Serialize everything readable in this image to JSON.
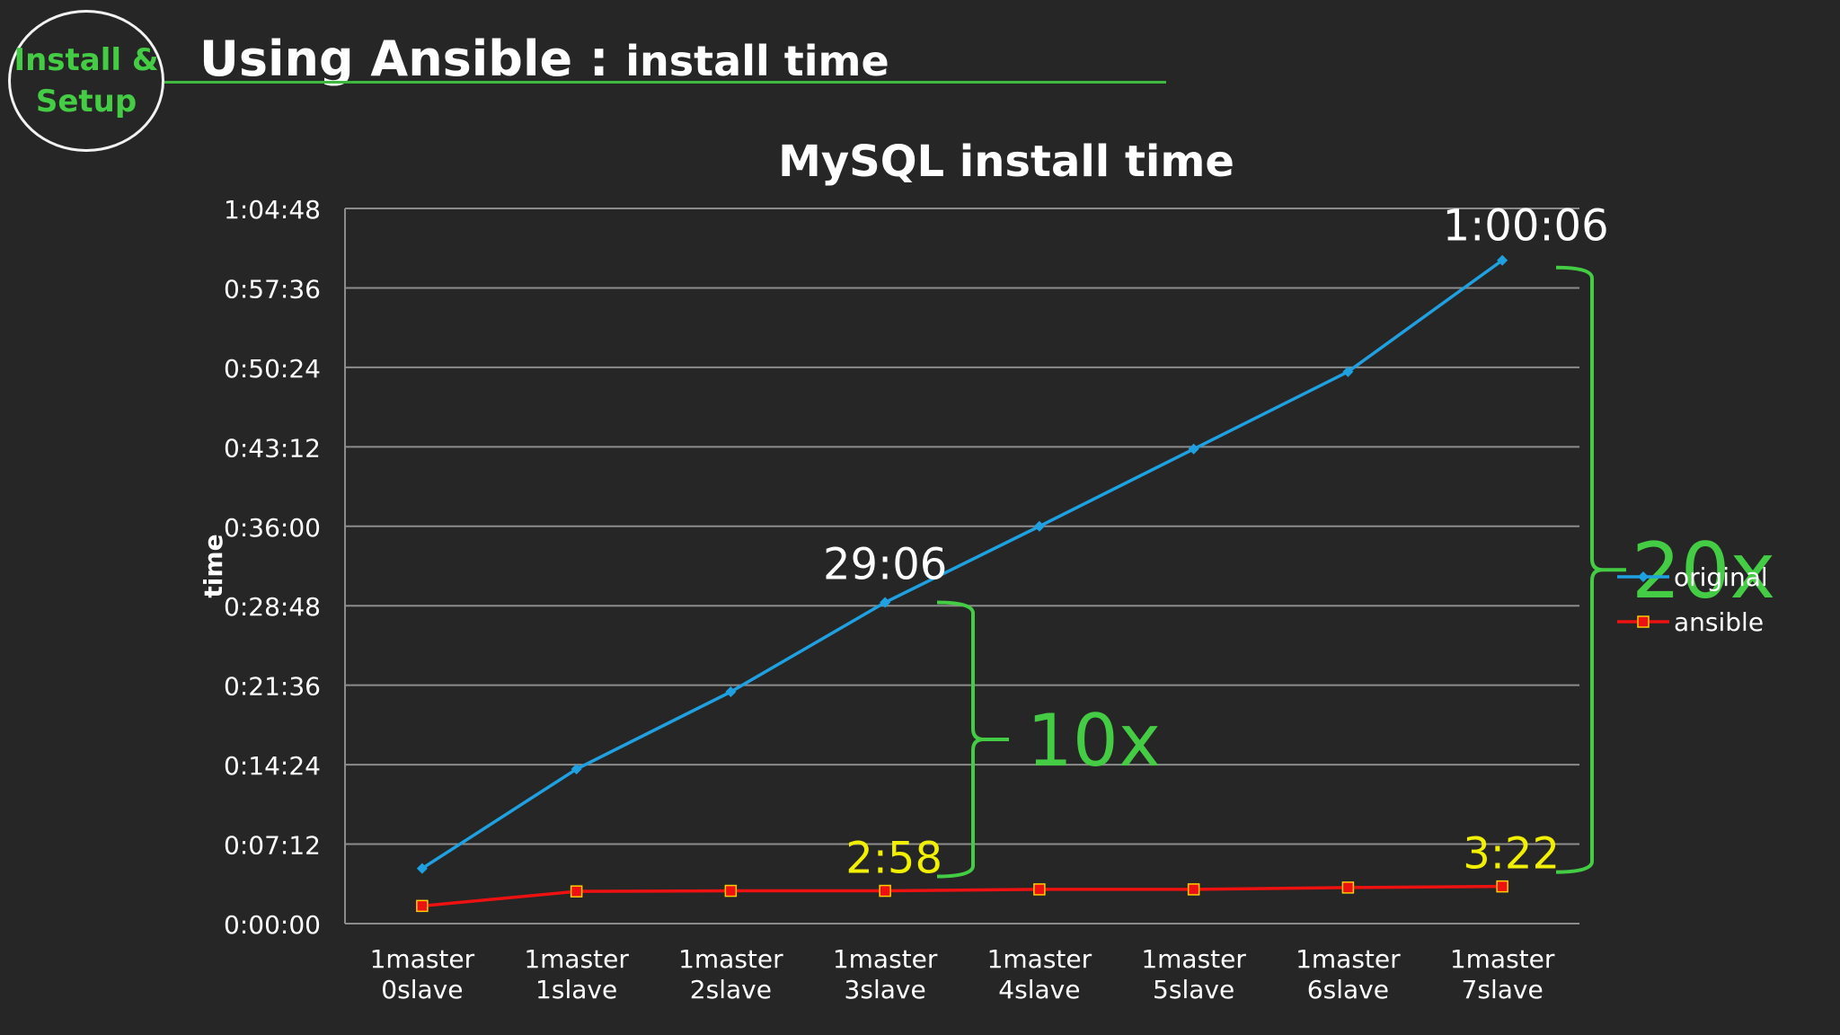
{
  "slide": {
    "badge_line1": "Install &",
    "badge_line2": "Setup",
    "title_main": "Using Ansible",
    "title_sep": " : ",
    "title_sub": "install time"
  },
  "chart_data": {
    "type": "line",
    "title": "MySQL install time",
    "ylabel": "time",
    "xlabel": "",
    "categories": [
      [
        "1master",
        "0slave"
      ],
      [
        "1master",
        "1slave"
      ],
      [
        "1master",
        "2slave"
      ],
      [
        "1master",
        "3slave"
      ],
      [
        "1master",
        "4slave"
      ],
      [
        "1master",
        "5slave"
      ],
      [
        "1master",
        "6slave"
      ],
      [
        "1master",
        "7slave"
      ]
    ],
    "y_ticks": [
      "0:00:00",
      "0:07:12",
      "0:14:24",
      "0:21:36",
      "0:28:48",
      "0:36:00",
      "0:43:12",
      "0:50:24",
      "0:57:36",
      "1:04:48"
    ],
    "ylim_seconds": [
      0,
      3888
    ],
    "grid": true,
    "legend_position": "right",
    "series": [
      {
        "name": "original",
        "color": "#1fa0e0",
        "marker": "diamond",
        "values_seconds": [
          300,
          840,
          1260,
          1746,
          2160,
          2580,
          3000,
          3606
        ]
      },
      {
        "name": "ansible",
        "color": "#ee1111",
        "marker": "square",
        "values_seconds": [
          96,
          175,
          178,
          178,
          186,
          186,
          196,
          202
        ]
      }
    ],
    "annotations": [
      {
        "text": "29:06",
        "color": "#ffffff",
        "series": 0,
        "index": 3
      },
      {
        "text": "1:00:06",
        "color": "#ffffff",
        "series": 0,
        "index": 7
      },
      {
        "text": "2:58",
        "color": "#f0f000",
        "series": 1,
        "index": 3
      },
      {
        "text": "3:22",
        "color": "#f0f000",
        "series": 1,
        "index": 7
      },
      {
        "text": "10x",
        "color": "#44cc44",
        "type": "ratio",
        "index": 3
      },
      {
        "text": "20x",
        "color": "#44cc44",
        "type": "ratio",
        "index": 7
      }
    ]
  }
}
